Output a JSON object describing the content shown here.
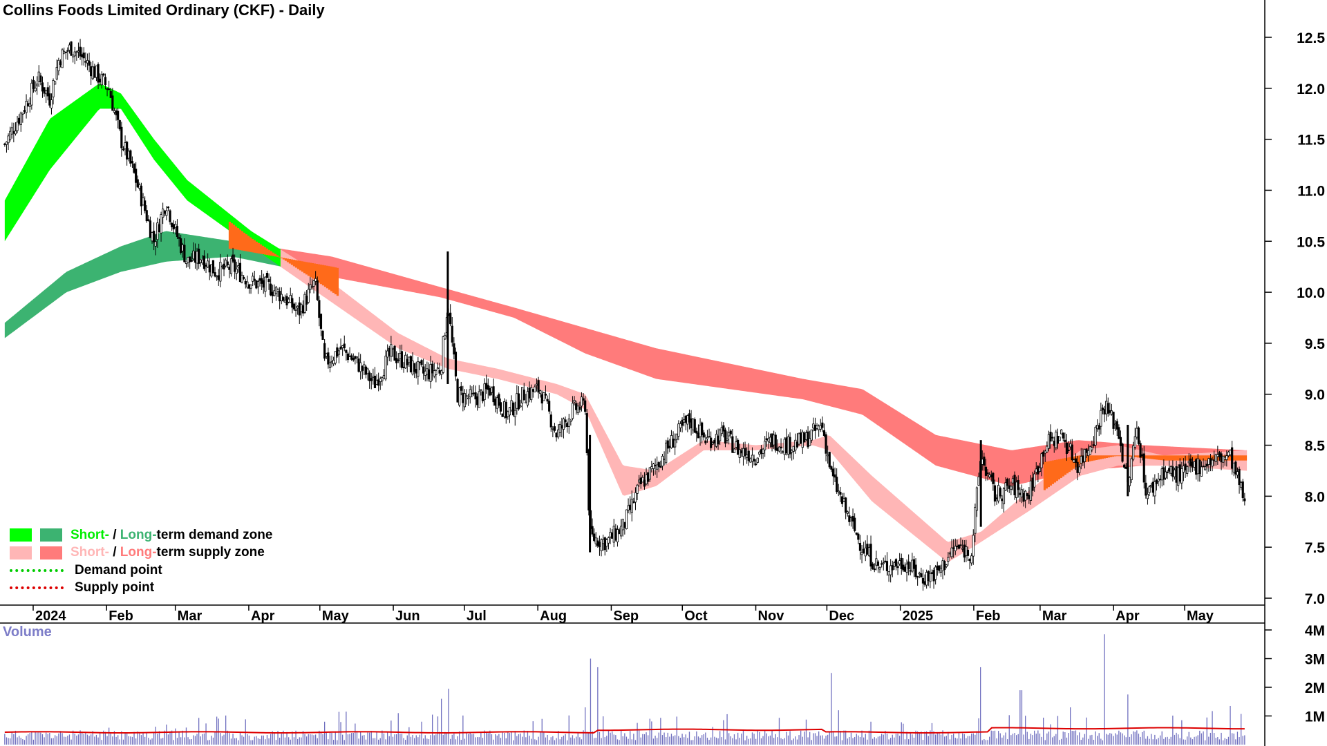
{
  "header": {
    "title": "Collins Foods Limited Ordinary (CKF) - Daily"
  },
  "legend": {
    "demand_prefix": "Short-",
    "demand_sep": " / ",
    "demand_mid": "Long-",
    "demand_suffix": "term demand zone",
    "supply_prefix": "Short-",
    "supply_sep": " / ",
    "supply_mid": "Long-",
    "supply_suffix": "term supply zone",
    "demand_point": "Demand point",
    "supply_point": "Supply point"
  },
  "volume_panel": {
    "label": "Volume"
  },
  "colors": {
    "short_demand": "#00ff00",
    "long_demand": "#3cb371",
    "short_supply": "#ffb6b6",
    "long_supply": "#ff7b7b",
    "crossover_band": "#ff6a1a",
    "demand_point": "#00cc00",
    "supply_point": "#dd0000",
    "volume_bar": "#6f6fbf",
    "volume_ma": "#dd0000",
    "volume_label": "#7d7dc8"
  },
  "chart_data": [
    {
      "type": "candlestick",
      "title": "Collins Foods Limited Ordinary (CKF) - Daily",
      "x_tick_labels": [
        "2024",
        "Feb",
        "Mar",
        "Apr",
        "May",
        "Jun",
        "Jul",
        "Aug",
        "Sep",
        "Oct",
        "Nov",
        "Dec",
        "2025",
        "Feb",
        "Mar",
        "Apr",
        "May"
      ],
      "y_tick_labels": [
        "12.5",
        "12.0",
        "11.5",
        "11.0",
        "10.5",
        "10.0",
        "9.5",
        "9.0",
        "8.5",
        "8.0",
        "7.5",
        "7.0"
      ],
      "ylim": [
        6.95,
        12.8
      ],
      "grid": false,
      "price_close": [
        [
          "2023-12-20",
          11.45
        ],
        [
          "2023-12-28",
          11.8
        ],
        [
          "2024-01-03",
          12.1
        ],
        [
          "2024-01-08",
          11.9
        ],
        [
          "2024-01-12",
          12.3
        ],
        [
          "2024-01-17",
          12.4
        ],
        [
          "2024-01-22",
          12.3
        ],
        [
          "2024-01-29",
          12.1
        ],
        [
          "2024-02-02",
          12.0
        ],
        [
          "2024-02-07",
          11.5
        ],
        [
          "2024-02-12",
          11.2
        ],
        [
          "2024-02-16",
          10.9
        ],
        [
          "2024-02-21",
          10.5
        ],
        [
          "2024-02-26",
          10.9
        ],
        [
          "2024-03-01",
          10.6
        ],
        [
          "2024-03-06",
          10.3
        ],
        [
          "2024-03-12",
          10.35
        ],
        [
          "2024-03-18",
          10.2
        ],
        [
          "2024-03-25",
          10.25
        ],
        [
          "2024-04-02",
          10.1
        ],
        [
          "2024-04-10",
          10.05
        ],
        [
          "2024-04-16",
          9.95
        ],
        [
          "2024-04-22",
          9.8
        ],
        [
          "2024-04-29",
          10.1
        ],
        [
          "2024-05-03",
          9.3
        ],
        [
          "2024-05-10",
          9.45
        ],
        [
          "2024-05-17",
          9.3
        ],
        [
          "2024-05-24",
          9.1
        ],
        [
          "2024-05-31",
          9.4
        ],
        [
          "2024-06-07",
          9.3
        ],
        [
          "2024-06-14",
          9.2
        ],
        [
          "2024-06-21",
          9.25
        ],
        [
          "2024-06-24",
          9.9
        ],
        [
          "2024-06-28",
          9.0
        ],
        [
          "2024-07-05",
          8.95
        ],
        [
          "2024-07-12",
          9.05
        ],
        [
          "2024-07-19",
          8.8
        ],
        [
          "2024-07-26",
          9.0
        ],
        [
          "2024-08-02",
          9.05
        ],
        [
          "2024-08-09",
          8.6
        ],
        [
          "2024-08-16",
          8.85
        ],
        [
          "2024-08-21",
          8.9
        ],
        [
          "2024-08-23",
          7.6
        ],
        [
          "2024-08-30",
          7.55
        ],
        [
          "2024-09-06",
          7.7
        ],
        [
          "2024-09-13",
          8.1
        ],
        [
          "2024-09-20",
          8.3
        ],
        [
          "2024-09-27",
          8.55
        ],
        [
          "2024-10-04",
          8.75
        ],
        [
          "2024-10-11",
          8.55
        ],
        [
          "2024-10-18",
          8.6
        ],
        [
          "2024-10-25",
          8.45
        ],
        [
          "2024-11-01",
          8.4
        ],
        [
          "2024-11-08",
          8.55
        ],
        [
          "2024-11-15",
          8.5
        ],
        [
          "2024-11-22",
          8.55
        ],
        [
          "2024-11-29",
          8.7
        ],
        [
          "2024-12-03",
          8.2
        ],
        [
          "2024-12-09",
          7.85
        ],
        [
          "2024-12-16",
          7.5
        ],
        [
          "2024-12-23",
          7.3
        ],
        [
          "2025-01-03",
          7.35
        ],
        [
          "2025-01-10",
          7.2
        ],
        [
          "2025-01-17",
          7.25
        ],
        [
          "2025-01-24",
          7.5
        ],
        [
          "2025-01-31",
          7.45
        ],
        [
          "2025-02-04",
          8.4
        ],
        [
          "2025-02-10",
          8.0
        ],
        [
          "2025-02-17",
          8.1
        ],
        [
          "2025-02-24",
          8.0
        ],
        [
          "2025-03-03",
          8.5
        ],
        [
          "2025-03-10",
          8.6
        ],
        [
          "2025-03-17",
          8.3
        ],
        [
          "2025-03-24",
          8.6
        ],
        [
          "2025-03-28",
          8.9
        ],
        [
          "2025-04-03",
          8.65
        ],
        [
          "2025-04-07",
          8.1
        ],
        [
          "2025-04-11",
          8.7
        ],
        [
          "2025-04-15",
          8.0
        ],
        [
          "2025-04-22",
          8.25
        ],
        [
          "2025-04-29",
          8.2
        ],
        [
          "2025-05-06",
          8.3
        ],
        [
          "2025-05-13",
          8.35
        ],
        [
          "2025-05-20",
          8.4
        ],
        [
          "2025-05-27",
          7.9
        ]
      ],
      "short_term_band": [
        [
          "2023-12-20",
          10.5,
          10.9
        ],
        [
          "2024-01-08",
          11.2,
          11.7
        ],
        [
          "2024-01-29",
          11.8,
          12.05
        ],
        [
          "2024-02-07",
          11.8,
          11.95
        ],
        [
          "2024-02-21",
          11.3,
          11.5
        ],
        [
          "2024-03-06",
          10.9,
          11.1
        ],
        [
          "2024-04-02",
          10.45,
          10.6
        ],
        [
          "2024-05-03",
          9.95,
          10.15
        ],
        [
          "2024-06-03",
          9.45,
          9.6
        ],
        [
          "2024-06-24",
          9.25,
          9.35
        ],
        [
          "2024-07-15",
          9.15,
          9.25
        ],
        [
          "2024-08-09",
          9.0,
          9.1
        ],
        [
          "2024-08-21",
          8.85,
          9.0
        ],
        [
          "2024-09-06",
          8.0,
          8.3
        ],
        [
          "2024-09-20",
          8.1,
          8.25
        ],
        [
          "2024-10-10",
          8.45,
          8.55
        ],
        [
          "2024-11-01",
          8.45,
          8.5
        ],
        [
          "2024-11-25",
          8.5,
          8.55
        ],
        [
          "2024-12-02",
          8.45,
          8.6
        ],
        [
          "2024-12-20",
          7.95,
          8.2
        ],
        [
          "2025-01-21",
          7.35,
          7.55
        ],
        [
          "2025-02-04",
          7.55,
          7.65
        ],
        [
          "2025-02-24",
          7.85,
          8.05
        ],
        [
          "2025-03-18",
          8.2,
          8.45
        ],
        [
          "2025-04-03",
          8.3,
          8.5
        ],
        [
          "2025-04-22",
          8.3,
          8.4
        ],
        [
          "2025-05-27",
          8.25,
          8.45
        ]
      ],
      "long_term_band": [
        [
          "2023-12-20",
          9.55,
          9.7
        ],
        [
          "2024-01-15",
          10.0,
          10.2
        ],
        [
          "2024-02-07",
          10.2,
          10.45
        ],
        [
          "2024-02-26",
          10.3,
          10.6
        ],
        [
          "2024-03-25",
          10.35,
          10.5
        ],
        [
          "2024-05-06",
          10.15,
          10.35
        ],
        [
          "2024-06-21",
          9.95,
          10.05
        ],
        [
          "2024-07-22",
          9.75,
          9.85
        ],
        [
          "2024-08-21",
          9.4,
          9.65
        ],
        [
          "2024-09-20",
          9.15,
          9.45
        ],
        [
          "2024-10-21",
          9.05,
          9.3
        ],
        [
          "2024-11-21",
          8.95,
          9.15
        ],
        [
          "2024-12-16",
          8.8,
          9.05
        ],
        [
          "2025-01-16",
          8.3,
          8.6
        ],
        [
          "2025-02-17",
          8.1,
          8.45
        ],
        [
          "2025-03-17",
          8.25,
          8.55
        ],
        [
          "2025-04-14",
          8.3,
          8.5
        ],
        [
          "2025-05-27",
          8.35,
          8.45
        ]
      ]
    },
    {
      "type": "bar",
      "title": "Volume",
      "y_tick_labels": [
        "4M",
        "3M",
        "2M",
        "1M"
      ],
      "ylim": [
        0,
        4000000
      ],
      "volume_peaks": [
        [
          "2024-02-26",
          700000
        ],
        [
          "2024-05-03",
          800000
        ],
        [
          "2024-06-03",
          1100000
        ],
        [
          "2024-06-21",
          1600000
        ],
        [
          "2024-06-24",
          1950000
        ],
        [
          "2024-08-21",
          1300000
        ],
        [
          "2024-08-23",
          3000000
        ],
        [
          "2024-08-26",
          2700000
        ],
        [
          "2024-12-03",
          2500000
        ],
        [
          "2024-12-06",
          1200000
        ],
        [
          "2025-02-04",
          2700000
        ],
        [
          "2025-02-21",
          1900000
        ],
        [
          "2025-03-14",
          1300000
        ],
        [
          "2025-03-28",
          3850000
        ],
        [
          "2025-04-07",
          1750000
        ],
        [
          "2025-05-20",
          1350000
        ]
      ],
      "volume_ma_level": 430000
    }
  ]
}
